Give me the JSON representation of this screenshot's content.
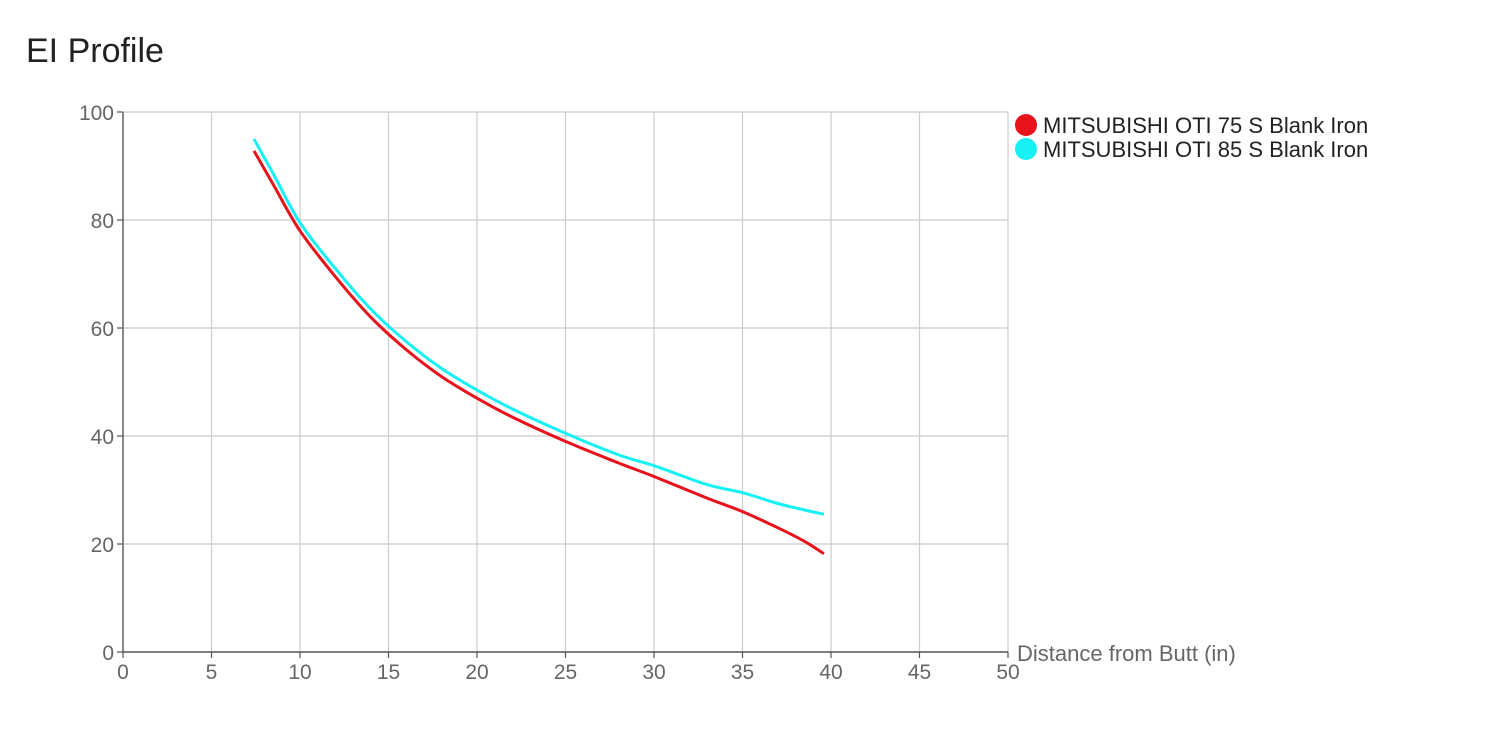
{
  "chart_data": {
    "type": "line",
    "title": "EI Profile",
    "xlabel": "Distance from Butt (in)",
    "ylabel": "",
    "xlim": [
      0,
      50
    ],
    "ylim": [
      0,
      100
    ],
    "xticks": [
      0,
      5,
      10,
      15,
      20,
      25,
      30,
      35,
      40,
      45,
      50
    ],
    "yticks": [
      0,
      20,
      40,
      60,
      80,
      100
    ],
    "grid": true,
    "legend_position": "top-right",
    "series": [
      {
        "name": "MITSUBISHI OTI 75 S Blank Iron",
        "color": "#e8131b",
        "x": [
          7.4,
          8.5,
          10,
          12,
          14,
          16,
          18,
          20,
          22,
          25,
          28,
          30,
          33,
          35,
          37,
          38.5,
          39.6
        ],
        "y": [
          92.8,
          86.5,
          78,
          69.5,
          62,
          56,
          51,
          47,
          43.5,
          39,
          35,
          32.5,
          28.5,
          26,
          23,
          20.5,
          18.2
        ]
      },
      {
        "name": "MITSUBISHI OTI 85 S Blank Iron",
        "color": "#17f0f5",
        "x": [
          7.4,
          8.5,
          10,
          12,
          14,
          16,
          18,
          20,
          22,
          25,
          28,
          30,
          33,
          35,
          37,
          38.5,
          39.6
        ],
        "y": [
          95,
          88.5,
          79.5,
          71,
          63.5,
          57.5,
          52.5,
          48.5,
          45,
          40.5,
          36.5,
          34.5,
          31,
          29.5,
          27.5,
          26.3,
          25.5
        ]
      }
    ]
  }
}
